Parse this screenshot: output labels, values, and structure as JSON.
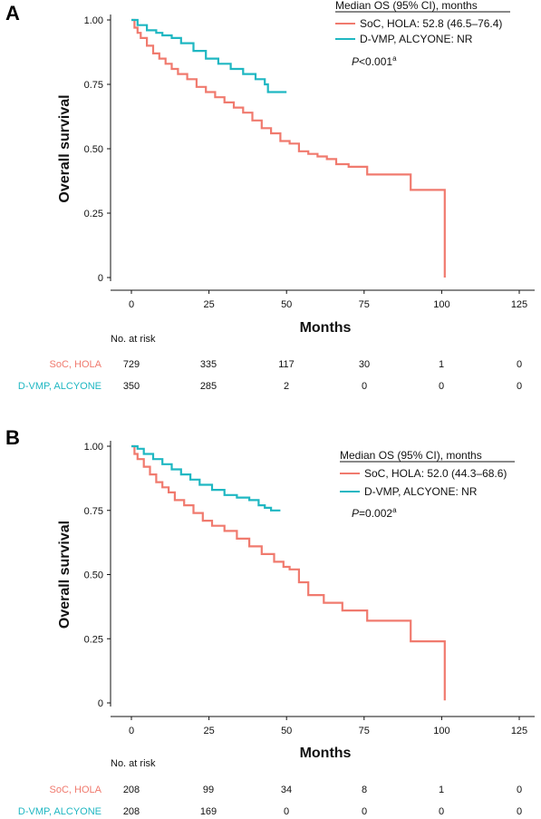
{
  "colors": {
    "soc": "#f07a6e",
    "dvmp": "#1fb7c2",
    "axis": "#111111"
  },
  "chart_data": [
    {
      "panel": "A",
      "type": "line",
      "ylabel": "Overall survival",
      "xlabel": "Months",
      "xlim": [
        0,
        125
      ],
      "ylim": [
        0,
        1
      ],
      "x_ticks": [
        "0",
        "25",
        "50",
        "75",
        "100",
        "125"
      ],
      "y_ticks": [
        "0",
        "0.25",
        "0.50",
        "0.75",
        "1.00"
      ],
      "legend_title": "Median OS (95% CI), months",
      "legend_placement": "top-right",
      "p_value": {
        "prefix": "P",
        "text": "<0.001",
        "superscript": "a"
      },
      "series": [
        {
          "name": "SoC, HOLA: 52.8 (46.5–76.4)",
          "color_key": "soc",
          "x": [
            0,
            1,
            2,
            3,
            5,
            7,
            9,
            11,
            13,
            15,
            18,
            21,
            24,
            27,
            30,
            33,
            36,
            39,
            42,
            45,
            48,
            51,
            54,
            57,
            60,
            63,
            66,
            70,
            73,
            76,
            80,
            84,
            90,
            95,
            101
          ],
          "y": [
            1.0,
            0.97,
            0.95,
            0.93,
            0.9,
            0.87,
            0.85,
            0.83,
            0.81,
            0.79,
            0.77,
            0.74,
            0.72,
            0.7,
            0.68,
            0.66,
            0.64,
            0.61,
            0.58,
            0.56,
            0.53,
            0.52,
            0.49,
            0.48,
            0.47,
            0.46,
            0.44,
            0.43,
            0.43,
            0.4,
            0.4,
            0.4,
            0.34,
            0.34,
            0.0
          ]
        },
        {
          "name": "D-VMP, ALCYONE: NR",
          "color_key": "dvmp",
          "x": [
            0,
            2,
            5,
            8,
            10,
            13,
            16,
            20,
            24,
            28,
            32,
            36,
            40,
            43,
            44,
            47,
            50
          ],
          "y": [
            1.0,
            0.98,
            0.96,
            0.95,
            0.94,
            0.93,
            0.91,
            0.88,
            0.85,
            0.83,
            0.81,
            0.79,
            0.77,
            0.75,
            0.72,
            0.72,
            0.72
          ]
        }
      ],
      "risk_table": {
        "title": "No. at risk",
        "rows": [
          {
            "label": "SoC, HOLA",
            "color_key": "soc",
            "values": [
              "729",
              "335",
              "117",
              "30",
              "1",
              "0"
            ]
          },
          {
            "label": "D-VMP, ALCYONE",
            "color_key": "dvmp",
            "values": [
              "350",
              "285",
              "2",
              "0",
              "0",
              "0"
            ]
          }
        ]
      }
    },
    {
      "panel": "B",
      "type": "line",
      "ylabel": "Overall survival",
      "xlabel": "Months",
      "xlim": [
        0,
        125
      ],
      "ylim": [
        0,
        1
      ],
      "x_ticks": [
        "0",
        "25",
        "50",
        "75",
        "100",
        "125"
      ],
      "y_ticks": [
        "0",
        "0.25",
        "0.50",
        "0.75",
        "1.00"
      ],
      "legend_title": "Median OS (95% CI), months",
      "legend_placement": "right",
      "p_value": {
        "prefix": "P",
        "text": "=0.002",
        "superscript": "a"
      },
      "series": [
        {
          "name": "SoC, HOLA: 52.0 (44.3–68.6)",
          "color_key": "soc",
          "x": [
            0,
            1,
            2,
            4,
            6,
            8,
            10,
            12,
            14,
            17,
            20,
            23,
            26,
            30,
            34,
            38,
            42,
            46,
            49,
            51,
            54,
            57,
            62,
            68,
            73,
            76,
            82,
            90,
            95,
            101
          ],
          "y": [
            1.0,
            0.97,
            0.95,
            0.92,
            0.89,
            0.86,
            0.84,
            0.82,
            0.79,
            0.77,
            0.74,
            0.71,
            0.69,
            0.67,
            0.64,
            0.61,
            0.58,
            0.55,
            0.53,
            0.52,
            0.47,
            0.42,
            0.39,
            0.36,
            0.36,
            0.32,
            0.32,
            0.24,
            0.24,
            0.01
          ]
        },
        {
          "name": "D-VMP, ALCYONE: NR",
          "color_key": "dvmp",
          "x": [
            0,
            2,
            4,
            7,
            10,
            13,
            16,
            19,
            22,
            26,
            30,
            34,
            38,
            41,
            43,
            45,
            48
          ],
          "y": [
            1.0,
            0.99,
            0.97,
            0.95,
            0.93,
            0.91,
            0.89,
            0.87,
            0.85,
            0.83,
            0.81,
            0.8,
            0.79,
            0.77,
            0.76,
            0.75,
            0.75
          ]
        }
      ],
      "risk_table": {
        "title": "No. at risk",
        "rows": [
          {
            "label": "SoC, HOLA",
            "color_key": "soc",
            "values": [
              "208",
              "99",
              "34",
              "8",
              "1",
              "0"
            ]
          },
          {
            "label": "D-VMP, ALCYONE",
            "color_key": "dvmp",
            "values": [
              "208",
              "169",
              "0",
              "0",
              "0",
              "0"
            ]
          }
        ]
      }
    }
  ]
}
